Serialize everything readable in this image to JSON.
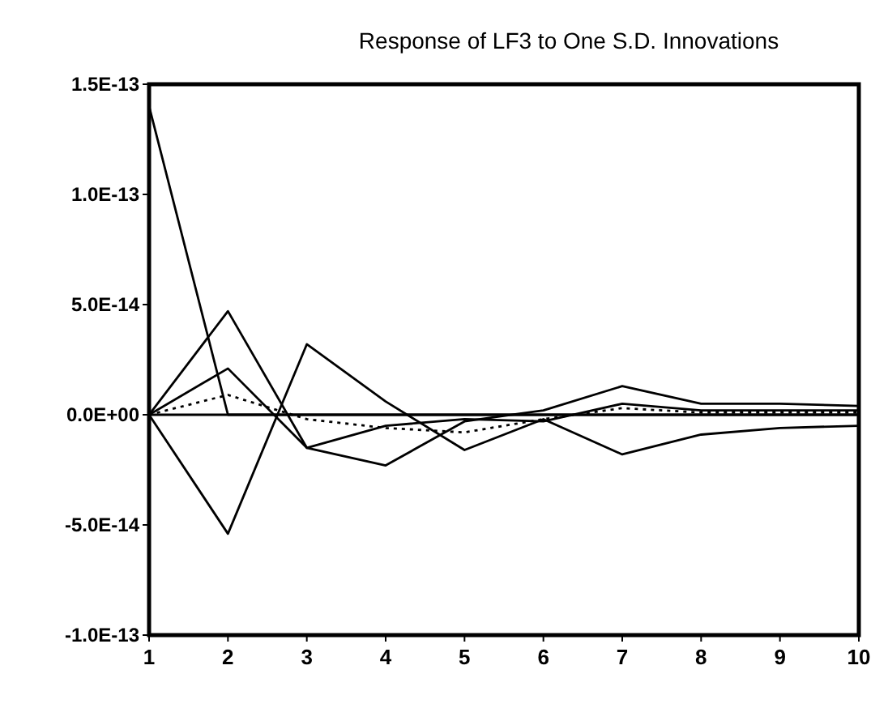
{
  "chart_data": {
    "type": "line",
    "title": "Response of LF3 to One S.D. Innovations",
    "categories": [
      "1",
      "2",
      "3",
      "4",
      "5",
      "6",
      "7",
      "8",
      "9",
      "10"
    ],
    "ylim": [
      -1e-13,
      1.5e-13
    ],
    "yticks": [
      {
        "value": -1e-13,
        "label": "-1.0E-13"
      },
      {
        "value": -5e-14,
        "label": "-5.0E-14"
      },
      {
        "value": 0,
        "label": "0.0E+00"
      },
      {
        "value": 5e-14,
        "label": "5.0E-14"
      },
      {
        "value": 1e-13,
        "label": "1.0E-13"
      },
      {
        "value": 1.5e-13,
        "label": "1.5E-13"
      }
    ],
    "series": [
      {
        "color": "#000000",
        "values": [
          1.4e-13,
          0,
          0,
          0,
          0,
          0,
          0,
          0,
          0,
          0
        ]
      },
      {
        "color": "#000000",
        "values": [
          0,
          4.7e-14,
          -1.5e-14,
          -2.3e-14,
          -3e-15,
          2e-15,
          1.3e-14,
          5e-15,
          5e-15,
          4e-15
        ]
      },
      {
        "color": "#000000",
        "values": [
          0,
          2.1e-14,
          -1.5e-14,
          -5e-15,
          -2e-15,
          -3e-15,
          5e-15,
          2e-15,
          2e-15,
          2e-15
        ]
      },
      {
        "color": "#000000",
        "values": [
          0,
          -5.4e-14,
          3.2e-14,
          6e-15,
          -1.6e-14,
          -2e-15,
          -1.8e-14,
          -9e-15,
          -6e-15,
          -5e-15
        ]
      },
      {
        "color": "#000000",
        "line_style": "dotted",
        "values": [
          0,
          9e-15,
          -2e-15,
          -6e-15,
          -8e-15,
          -2e-15,
          3e-15,
          1e-15,
          1e-15,
          1e-15
        ]
      }
    ]
  }
}
